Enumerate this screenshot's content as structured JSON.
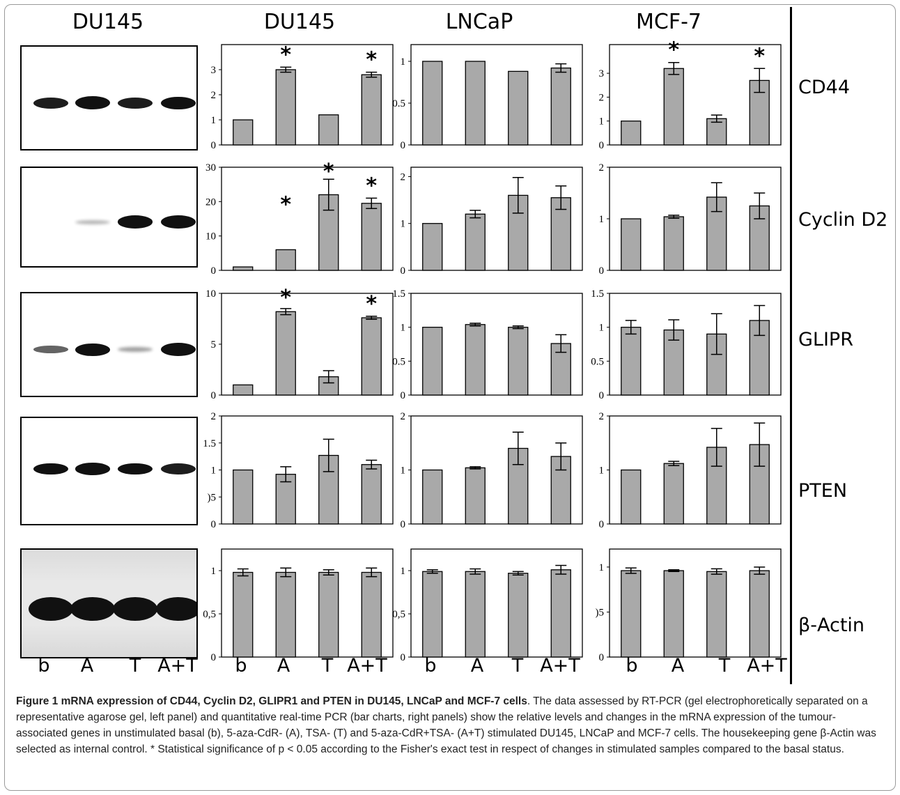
{
  "column_titles": [
    "DU145",
    "DU145",
    "LNCaP",
    "MCF-7"
  ],
  "gene_labels": [
    "CD44",
    "Cyclin D2",
    "GLIPR",
    "PTEN",
    "β-Actin"
  ],
  "lane_labels": [
    "b",
    "A",
    "T",
    "A+T"
  ],
  "caption": {
    "title": "Figure 1 mRNA expression of CD44, Cyclin D2, GLIPR1 and PTEN in DU145, LNCaP and MCF-7 cells",
    "body": ". The data assessed by RT-PCR (gel electrophoretically separated on a representative agarose gel, left panel) and quantitative real-time PCR (bar charts, right panels) show the relative levels and changes in the mRNA expression of the tumour-associated genes in unstimulated basal (b), 5-aza-CdR- (A), TSA- (T) and 5-aza-CdR+TSA- (A+T) stimulated DU145, LNCaP and MCF-7 cells. The housekeeping gene β-Actin was selected as internal control. * Statistical significance of p < 0.05 according to the Fisher's exact test in respect of changes in stimulated samples compared to the basal status."
  },
  "colors": {
    "bar": "#a9a9a9",
    "axis": "#000000"
  },
  "gels": [
    {
      "gene": "CD44",
      "bands": [
        0.75,
        0.95,
        0.75,
        0.9
      ]
    },
    {
      "gene": "Cyclin D2",
      "bands": [
        0.0,
        0.1,
        0.9,
        0.95
      ]
    },
    {
      "gene": "GLIPR",
      "bands": [
        0.45,
        0.9,
        0.2,
        0.95
      ]
    },
    {
      "gene": "PTEN",
      "bands": [
        0.8,
        0.85,
        0.8,
        0.75
      ]
    },
    {
      "gene": "β-Actin",
      "bands": [
        1.0,
        1.0,
        1.0,
        1.0
      ]
    }
  ],
  "chart_data": [
    {
      "type": "bar",
      "cell": "DU145",
      "gene": "CD44",
      "categories": [
        "b",
        "A",
        "T",
        "A+T"
      ],
      "values": [
        1.0,
        3.0,
        1.2,
        2.8
      ],
      "errors": [
        0,
        0.1,
        0,
        0.1
      ],
      "significant": [
        false,
        true,
        false,
        true
      ],
      "ylim": [
        0,
        4
      ],
      "ticks": [
        "0",
        "1",
        "2",
        "3"
      ],
      "tick_values": [
        0,
        1,
        2,
        3
      ]
    },
    {
      "type": "bar",
      "cell": "LNCaP",
      "gene": "CD44",
      "categories": [
        "b",
        "A",
        "T",
        "A+T"
      ],
      "values": [
        1.0,
        1.0,
        0.88,
        0.92
      ],
      "errors": [
        0,
        0,
        0,
        0.05
      ],
      "significant": [
        false,
        false,
        false,
        false
      ],
      "ylim": [
        0,
        1.2
      ],
      "ticks": [
        "0",
        "0.5",
        "1"
      ],
      "tick_values": [
        0,
        0.5,
        1
      ]
    },
    {
      "type": "bar",
      "cell": "MCF-7",
      "gene": "CD44",
      "categories": [
        "b",
        "A",
        "T",
        "A+T"
      ],
      "values": [
        1.0,
        3.2,
        1.1,
        2.7
      ],
      "errors": [
        0,
        0.25,
        0.15,
        0.5
      ],
      "significant": [
        false,
        true,
        false,
        true
      ],
      "ylim": [
        0,
        4.2
      ],
      "ticks": [
        "0",
        "1",
        "2",
        "3"
      ],
      "tick_values": [
        0,
        1,
        2,
        3
      ]
    },
    {
      "type": "bar",
      "cell": "DU145",
      "gene": "Cyclin D2",
      "categories": [
        "b",
        "A",
        "T",
        "A+T"
      ],
      "values": [
        1,
        6,
        22,
        19.5
      ],
      "errors": [
        0,
        0,
        4.5,
        1.5
      ],
      "significant": [
        false,
        true,
        true,
        true
      ],
      "ylim": [
        0,
        30
      ],
      "ticks": [
        "0",
        "10",
        "20",
        "30"
      ],
      "tick_values": [
        0,
        10,
        20,
        30
      ]
    },
    {
      "type": "bar",
      "cell": "LNCaP",
      "gene": "Cyclin D2",
      "categories": [
        "b",
        "A",
        "T",
        "A+T"
      ],
      "values": [
        1.0,
        1.2,
        1.6,
        1.55
      ],
      "errors": [
        0,
        0.08,
        0.38,
        0.25
      ],
      "significant": [
        false,
        false,
        false,
        false
      ],
      "ylim": [
        0,
        2.2
      ],
      "ticks": [
        "0",
        "1",
        "2"
      ],
      "tick_values": [
        0,
        1,
        2
      ]
    },
    {
      "type": "bar",
      "cell": "MCF-7",
      "gene": "Cyclin D2",
      "categories": [
        "b",
        "A",
        "T",
        "A+T"
      ],
      "values": [
        1.0,
        1.04,
        1.42,
        1.25
      ],
      "errors": [
        0,
        0.03,
        0.28,
        0.25
      ],
      "significant": [
        false,
        false,
        false,
        false
      ],
      "ylim": [
        0,
        2
      ],
      "ticks": [
        "0",
        "1",
        "2"
      ],
      "tick_values": [
        0,
        1,
        2
      ]
    },
    {
      "type": "bar",
      "cell": "DU145",
      "gene": "GLIPR",
      "categories": [
        "b",
        "A",
        "T",
        "A+T"
      ],
      "values": [
        1.0,
        8.2,
        1.8,
        7.6
      ],
      "errors": [
        0,
        0.3,
        0.6,
        0.15
      ],
      "significant": [
        false,
        true,
        false,
        true
      ],
      "ylim": [
        0,
        10
      ],
      "ticks": [
        "0",
        "5",
        "10"
      ],
      "tick_values": [
        0,
        5,
        10
      ]
    },
    {
      "type": "bar",
      "cell": "LNCaP",
      "gene": "GLIPR",
      "categories": [
        "b",
        "A",
        "T",
        "A+T"
      ],
      "values": [
        1.0,
        1.04,
        1.0,
        0.76
      ],
      "errors": [
        0,
        0.02,
        0.02,
        0.13
      ],
      "significant": [
        false,
        false,
        false,
        false
      ],
      "ylim": [
        0,
        1.5
      ],
      "ticks": [
        "0",
        "0.5",
        "1",
        "1.5"
      ],
      "tick_values": [
        0,
        0.5,
        1,
        1.5
      ]
    },
    {
      "type": "bar",
      "cell": "MCF-7",
      "gene": "GLIPR",
      "categories": [
        "b",
        "A",
        "T",
        "A+T"
      ],
      "values": [
        1.0,
        0.96,
        0.9,
        1.1
      ],
      "errors": [
        0.1,
        0.15,
        0.3,
        0.22
      ],
      "significant": [
        false,
        false,
        false,
        false
      ],
      "ylim": [
        0,
        1.5
      ],
      "ticks": [
        "0",
        "0.5",
        "1",
        "1.5"
      ],
      "tick_values": [
        0,
        0.5,
        1,
        1.5
      ]
    },
    {
      "type": "bar",
      "cell": "DU145",
      "gene": "PTEN",
      "categories": [
        "b",
        "A",
        "T",
        "A+T"
      ],
      "values": [
        1.0,
        0.92,
        1.27,
        1.1
      ],
      "errors": [
        0,
        0.14,
        0.3,
        0.08
      ],
      "significant": [
        false,
        false,
        false,
        false
      ],
      "ylim": [
        0,
        2
      ],
      "ticks": [
        "0",
        ")5",
        "1",
        "1.5",
        "2"
      ],
      "tick_values": [
        0,
        0.5,
        1,
        1.5,
        2
      ]
    },
    {
      "type": "bar",
      "cell": "LNCaP",
      "gene": "PTEN",
      "categories": [
        "b",
        "A",
        "T",
        "A+T"
      ],
      "values": [
        1.0,
        1.04,
        1.4,
        1.25
      ],
      "errors": [
        0,
        0.02,
        0.3,
        0.25
      ],
      "significant": [
        false,
        false,
        false,
        false
      ],
      "ylim": [
        0,
        2
      ],
      "ticks": [
        "0",
        "1",
        "2"
      ],
      "tick_values": [
        0,
        1,
        2
      ]
    },
    {
      "type": "bar",
      "cell": "MCF-7",
      "gene": "PTEN",
      "categories": [
        "b",
        "A",
        "T",
        "A+T"
      ],
      "values": [
        1.0,
        1.12,
        1.42,
        1.47
      ],
      "errors": [
        0,
        0.04,
        0.35,
        0.4
      ],
      "significant": [
        false,
        false,
        false,
        false
      ],
      "ylim": [
        0,
        2
      ],
      "ticks": [
        "0",
        "1",
        "2"
      ],
      "tick_values": [
        0,
        1,
        2
      ]
    },
    {
      "type": "bar",
      "cell": "DU145",
      "gene": "β-Actin",
      "categories": [
        "b",
        "A",
        "T",
        "A+T"
      ],
      "values": [
        0.98,
        0.98,
        0.98,
        0.98
      ],
      "errors": [
        0.04,
        0.05,
        0.03,
        0.05
      ],
      "significant": [
        false,
        false,
        false,
        false
      ],
      "ylim": [
        0,
        1.25
      ],
      "ticks": [
        "0",
        "0,5",
        "1"
      ],
      "tick_values": [
        0,
        0.5,
        1
      ]
    },
    {
      "type": "bar",
      "cell": "LNCaP",
      "gene": "β-Actin",
      "categories": [
        "b",
        "A",
        "T",
        "A+T"
      ],
      "values": [
        0.99,
        0.99,
        0.97,
        1.01
      ],
      "errors": [
        0.02,
        0.03,
        0.02,
        0.05
      ],
      "significant": [
        false,
        false,
        false,
        false
      ],
      "ylim": [
        0,
        1.25
      ],
      "ticks": [
        "0",
        "0,5",
        "1"
      ],
      "tick_values": [
        0,
        0.5,
        1
      ]
    },
    {
      "type": "bar",
      "cell": "MCF-7",
      "gene": "β-Actin",
      "categories": [
        "b",
        "A",
        "T",
        "A+T"
      ],
      "values": [
        0.96,
        0.96,
        0.95,
        0.96
      ],
      "errors": [
        0.03,
        0.01,
        0.03,
        0.04
      ],
      "significant": [
        false,
        false,
        false,
        false
      ],
      "ylim": [
        0,
        1.2
      ],
      "ticks": [
        "0",
        ")5",
        "1"
      ],
      "tick_values": [
        0,
        0.5,
        1
      ]
    }
  ]
}
